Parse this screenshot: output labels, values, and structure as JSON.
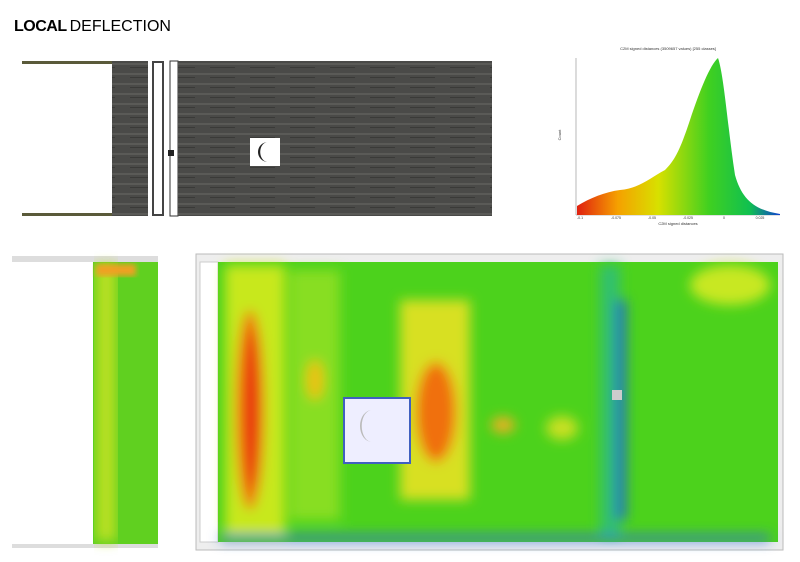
{
  "header": {
    "title_bold": "LOCAL",
    "title_rest": "DEFLECTION"
  },
  "histogram": {
    "title": "C2M signed distances (3509657 values) [255 classes]",
    "y_label": "Count",
    "x_label": "C2M signed distances",
    "x_ticks": [
      "-0.1",
      "-0.075",
      "-0.05",
      "-0.025",
      "0",
      "0.025"
    ]
  }
}
